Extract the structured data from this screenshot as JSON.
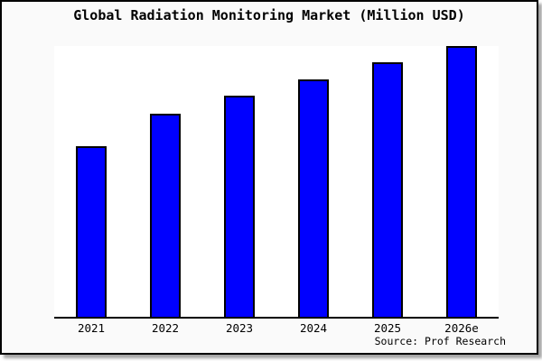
{
  "chart_data": {
    "type": "bar",
    "title": "Global Radiation Monitoring Market (Million USD)",
    "categories": [
      "2021",
      "2022",
      "2023",
      "2024",
      "2025",
      "2026e"
    ],
    "values": [
      189,
      225,
      245,
      263,
      282,
      301
    ],
    "values_note": "relative heights estimated from pixels; no y-axis scale shown in chart",
    "ylim": [
      0,
      300
    ],
    "xlabel": "",
    "ylabel": "",
    "grid": false,
    "legend": false,
    "y_axis_visible": false,
    "source": "Source: Prof Research",
    "colors": {
      "bar_fill": "#0000ff",
      "bar_border": "#000000",
      "axis": "#000000",
      "plot_background": "#ffffff",
      "chart_background": "#fafafa",
      "frame_border": "#000000",
      "text": "#000000"
    }
  }
}
